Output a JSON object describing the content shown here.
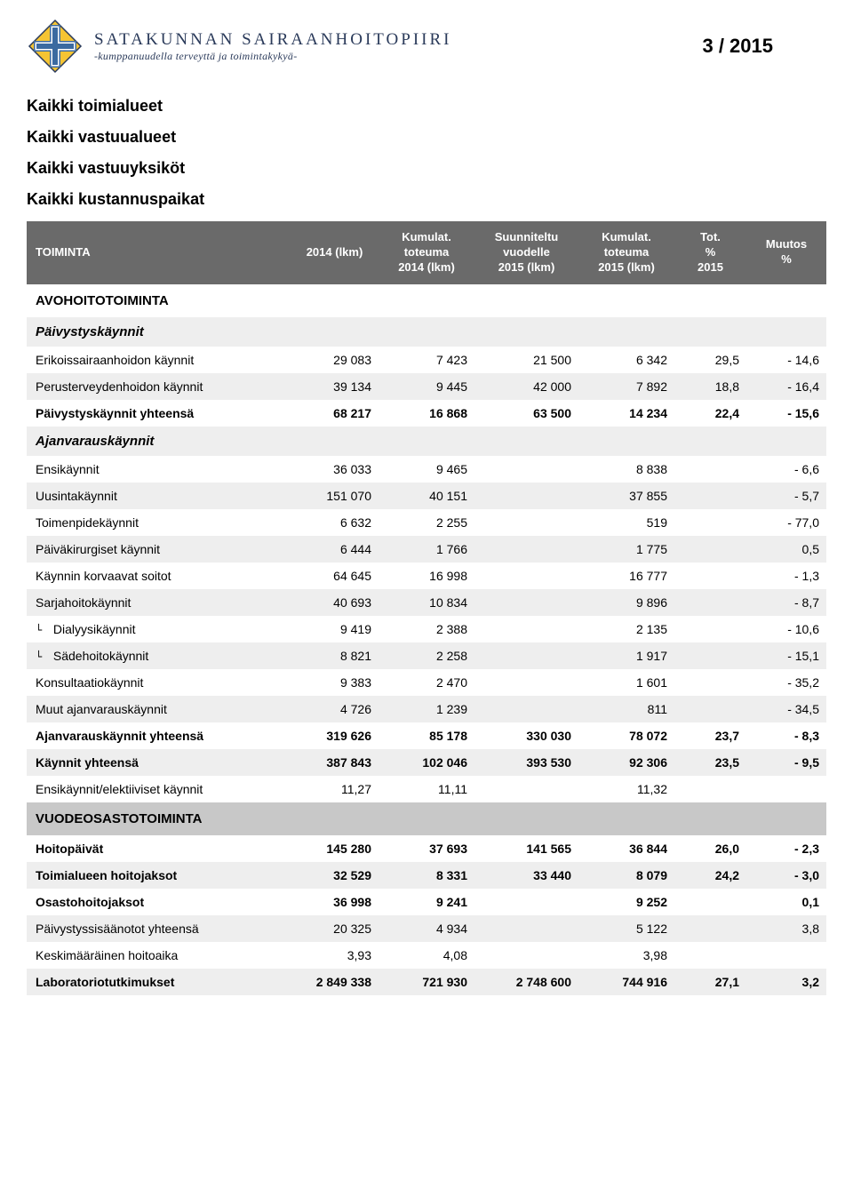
{
  "header": {
    "org_name": "SATAKUNNAN SAIRAANHOITOPIIRI",
    "org_tagline": "-kumppanuudella terveyttä ja toimintakykyä-",
    "page_number": "3 / 2015",
    "logo_colors": {
      "blue": "#3b6aa0",
      "yellow": "#f5c433",
      "outline": "#2a3a5a"
    }
  },
  "scope_lines": [
    "Kaikki toimialueet",
    "Kaikki vastuualueet",
    "Kaikki vastuuyksiköt",
    "Kaikki kustannuspaikat"
  ],
  "columns": [
    "TOIMINTA",
    "2014 (lkm)",
    "Kumulat. toteuma 2014 (lkm)",
    "Suunniteltu vuodelle 2015 (lkm)",
    "Kumulat. toteuma 2015 (lkm)",
    "Tot. % 2015",
    "Muutos %"
  ],
  "column_widths": [
    "33%",
    "11%",
    "12%",
    "13%",
    "12%",
    "9%",
    "10%"
  ],
  "header_bg": "#6a6a6a",
  "header_fg": "#ffffff",
  "row_shade_light": "#eeeeee",
  "row_shade_dark": "#c8c8c8",
  "rows": [
    {
      "type": "section",
      "label": "AVOHOITOTOIMINTA"
    },
    {
      "type": "subsection",
      "label": "Päivystyskäynnit",
      "shade": true
    },
    {
      "type": "data",
      "label": "Erikoissairaanhoidon käynnit",
      "v": [
        "29 083",
        "7 423",
        "21 500",
        "6 342",
        "29,5",
        "-  14,6"
      ]
    },
    {
      "type": "data",
      "label": "Perusterveydenhoidon käynnit",
      "v": [
        "39 134",
        "9 445",
        "42 000",
        "7 892",
        "18,8",
        "-  16,4"
      ],
      "shade": true
    },
    {
      "type": "data",
      "label": "Päivystyskäynnit yhteensä",
      "v": [
        "68 217",
        "16 868",
        "63 500",
        "14 234",
        "22,4",
        "-  15,6"
      ],
      "bold": true
    },
    {
      "type": "subsection",
      "label": "Ajanvarauskäynnit",
      "shade": true
    },
    {
      "type": "data",
      "label": "Ensikäynnit",
      "v": [
        "36 033",
        "9 465",
        "",
        "8 838",
        "",
        "-  6,6"
      ]
    },
    {
      "type": "data",
      "label": "Uusintakäynnit",
      "v": [
        "151 070",
        "40 151",
        "",
        "37 855",
        "",
        "-  5,7"
      ],
      "shade": true
    },
    {
      "type": "data",
      "label": "Toimenpidekäynnit",
      "v": [
        "6 632",
        "2 255",
        "",
        "519",
        "",
        "-  77,0"
      ]
    },
    {
      "type": "data",
      "label": "Päiväkirurgiset käynnit",
      "v": [
        "6 444",
        "1 766",
        "",
        "1 775",
        "",
        "0,5"
      ],
      "shade": true
    },
    {
      "type": "data",
      "label": "Käynnin korvaavat soitot",
      "v": [
        "64 645",
        "16 998",
        "",
        "16 777",
        "",
        "-  1,3"
      ]
    },
    {
      "type": "data",
      "label": "Sarjahoitokäynnit",
      "v": [
        "40 693",
        "10 834",
        "",
        "9 896",
        "",
        "-  8,7"
      ],
      "shade": true
    },
    {
      "type": "data",
      "label": "Dialyysikäynnit",
      "sub": true,
      "v": [
        "9 419",
        "2 388",
        "",
        "2 135",
        "",
        "-  10,6"
      ]
    },
    {
      "type": "data",
      "label": "Sädehoitokäynnit",
      "sub": true,
      "v": [
        "8 821",
        "2 258",
        "",
        "1 917",
        "",
        "-  15,1"
      ],
      "shade": true
    },
    {
      "type": "data",
      "label": "Konsultaatiokäynnit",
      "v": [
        "9 383",
        "2 470",
        "",
        "1 601",
        "",
        "-  35,2"
      ]
    },
    {
      "type": "data",
      "label": "Muut ajanvarauskäynnit",
      "v": [
        "4 726",
        "1 239",
        "",
        "811",
        "",
        "-  34,5"
      ],
      "shade": true
    },
    {
      "type": "data",
      "label": "Ajanvarauskäynnit yhteensä",
      "v": [
        "319 626",
        "85 178",
        "330 030",
        "78 072",
        "23,7",
        "-  8,3"
      ],
      "bold": true
    },
    {
      "type": "data",
      "label": "Käynnit yhteensä",
      "v": [
        "387 843",
        "102 046",
        "393 530",
        "92 306",
        "23,5",
        "-  9,5"
      ],
      "bold": true,
      "shade": true
    },
    {
      "type": "data",
      "label": "Ensikäynnit/elektiiviset käynnit",
      "v": [
        "11,27",
        "11,11",
        "",
        "11,32",
        "",
        ""
      ]
    },
    {
      "type": "section",
      "label": "VUODEOSASTOTOIMINTA",
      "dark": true
    },
    {
      "type": "data",
      "label": "Hoitopäivät",
      "v": [
        "145 280",
        "37 693",
        "141 565",
        "36 844",
        "26,0",
        "-  2,3"
      ],
      "bold": true
    },
    {
      "type": "data",
      "label": "Toimialueen hoitojaksot",
      "v": [
        "32 529",
        "8 331",
        "33 440",
        "8 079",
        "24,2",
        "-  3,0"
      ],
      "bold": true,
      "shade": true
    },
    {
      "type": "data",
      "label": "Osastohoitojaksot",
      "v": [
        "36 998",
        "9 241",
        "",
        "9 252",
        "",
        "0,1"
      ],
      "bold": true
    },
    {
      "type": "data",
      "label": "Päivystyssisäänotot yhteensä",
      "v": [
        "20 325",
        "4 934",
        "",
        "5 122",
        "",
        "3,8"
      ],
      "shade": true
    },
    {
      "type": "data",
      "label": "Keskimääräinen hoitoaika",
      "v": [
        "3,93",
        "4,08",
        "",
        "3,98",
        "",
        ""
      ]
    },
    {
      "type": "data",
      "label": "Laboratoriotutkimukset",
      "v": [
        "2 849 338",
        "721 930",
        "2 748 600",
        "744 916",
        "27,1",
        "3,2"
      ],
      "bold": true,
      "shade": true
    }
  ]
}
